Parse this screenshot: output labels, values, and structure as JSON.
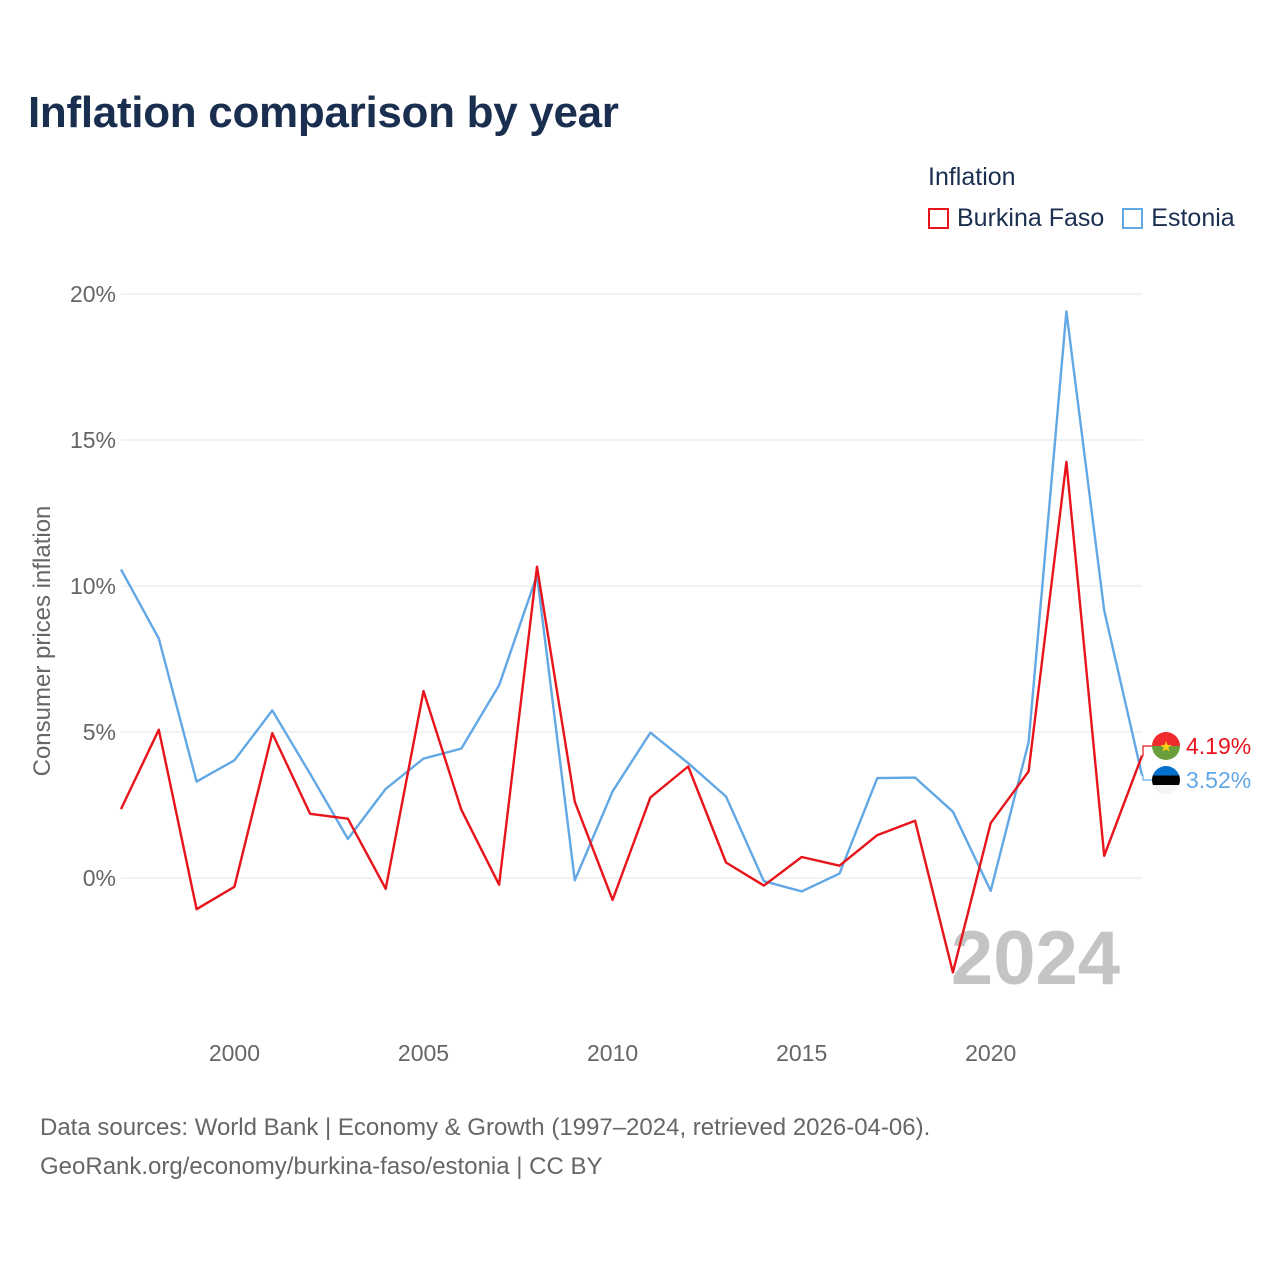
{
  "title": "Inflation comparison by year",
  "legend": {
    "title": "Inflation",
    "items": [
      {
        "label": "Burkina Faso",
        "color": "#e8141b"
      },
      {
        "label": "Estonia",
        "color": "#62a8e5"
      }
    ]
  },
  "year_watermark": "2024",
  "source": {
    "line1": "Data sources: World Bank | Economy & Growth (1997–2024, retrieved 2026-04-06).",
    "line2": "GeoRank.org/economy/burkina-faso/estonia | CC BY"
  },
  "chart_data": {
    "type": "line",
    "title": "Inflation comparison by year",
    "ylabel": "Consumer prices inflation",
    "xlabel": "",
    "x": [
      1997,
      1998,
      1999,
      2000,
      2001,
      2002,
      2003,
      2004,
      2005,
      2006,
      2007,
      2008,
      2009,
      2010,
      2011,
      2012,
      2013,
      2014,
      2015,
      2016,
      2017,
      2018,
      2019,
      2020,
      2021,
      2022,
      2023,
      2024
    ],
    "xlim": [
      1997,
      2024
    ],
    "ylim": [
      -4.5,
      20
    ],
    "x_ticks": [
      2000,
      2005,
      2010,
      2015,
      2020
    ],
    "x_tick_labels": [
      "2000",
      "2005",
      "2010",
      "2015",
      "2020"
    ],
    "y_ticks": [
      0,
      5,
      10,
      15,
      20
    ],
    "y_tick_labels": [
      "0%",
      "5%",
      "10%",
      "15%",
      "20%"
    ],
    "grid": true,
    "series": [
      {
        "name": "Burkina Faso",
        "color": "#e8141b",
        "values": [
          2.36,
          5.08,
          -1.07,
          -0.3,
          4.96,
          2.2,
          2.03,
          -0.37,
          6.4,
          2.34,
          -0.23,
          10.66,
          2.61,
          -0.75,
          2.76,
          3.82,
          0.53,
          -0.26,
          0.72,
          0.42,
          1.47,
          1.96,
          -3.23,
          1.88,
          3.65,
          14.25,
          0.76,
          4.19
        ],
        "end_label": "4.19%"
      },
      {
        "name": "Estonia",
        "color": "#62a8e5",
        "values": [
          10.57,
          8.2,
          3.3,
          4.03,
          5.74,
          3.57,
          1.34,
          3.05,
          4.09,
          4.43,
          6.6,
          10.37,
          -0.08,
          2.97,
          4.98,
          3.93,
          2.79,
          -0.11,
          -0.46,
          0.15,
          3.42,
          3.44,
          2.27,
          -0.44,
          4.65,
          19.4,
          9.16,
          3.52
        ],
        "end_label": "3.52%"
      }
    ]
  }
}
